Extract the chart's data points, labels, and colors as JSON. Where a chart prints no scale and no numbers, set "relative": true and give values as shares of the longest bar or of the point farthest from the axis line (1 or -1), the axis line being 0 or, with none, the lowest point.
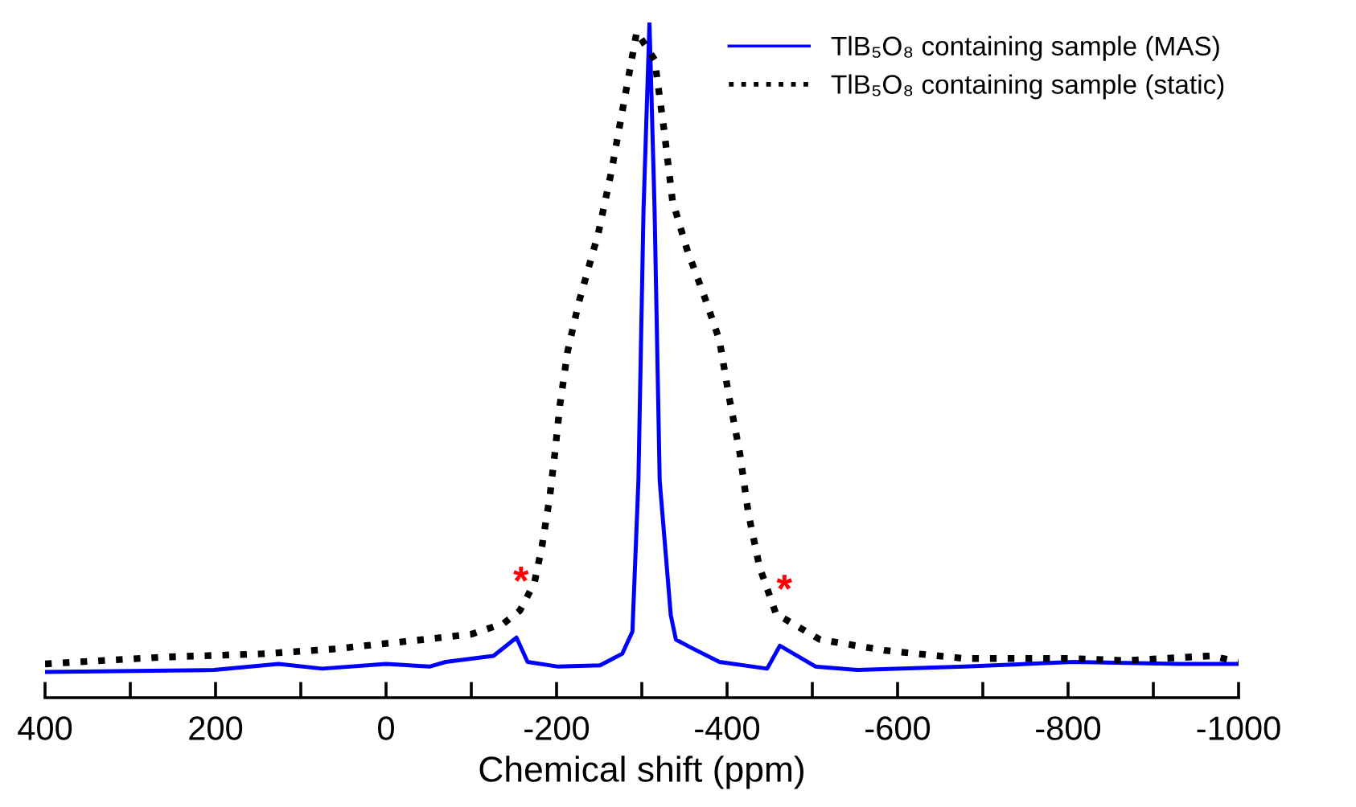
{
  "chart_data": {
    "type": "line",
    "relative": true,
    "xlabel": "Chemical shift (ppm)",
    "xlim": [
      400,
      -1000
    ],
    "xticks": [
      400,
      {
        "value": 300,
        "label": null
      },
      200,
      {
        "value": 100,
        "label": null
      },
      0,
      {
        "value": -100,
        "label": null
      },
      -200,
      {
        "value": -300,
        "label": null
      },
      -400,
      {
        "value": -500,
        "label": null
      },
      -600,
      {
        "value": -700,
        "label": null
      },
      -800,
      {
        "value": -900,
        "label": null
      },
      -1000
    ],
    "legend": "top right",
    "grid": false,
    "series": [
      {
        "name": "TlB₅O₈ containing sample (MAS)",
        "color": "#0000ff",
        "line_style": "solid",
        "x": [
          400,
          202,
          126,
          75,
          0,
          -51,
          -70,
          -126,
          -153,
          -166,
          -202,
          -251,
          -277,
          -289,
          -296,
          -302,
          -309,
          -315,
          -321,
          -334,
          -340,
          -358,
          -391,
          -447,
          -462,
          -504,
          -553,
          -679,
          -806,
          -930,
          -1000
        ],
        "values": [
          0.038,
          0.041,
          0.05,
          0.043,
          0.05,
          0.046,
          0.053,
          0.062,
          0.089,
          0.053,
          0.046,
          0.048,
          0.065,
          0.098,
          0.321,
          0.722,
          1.0,
          0.722,
          0.321,
          0.122,
          0.086,
          0.074,
          0.053,
          0.043,
          0.077,
          0.046,
          0.041,
          0.046,
          0.053,
          0.05,
          0.05
        ]
      },
      {
        "name": "TlB₅O₈ containing sample (static)",
        "color": "#000000",
        "line_style": "dotted",
        "x": [
          400,
          264,
          145,
          62,
          -43,
          -100,
          -138,
          -157,
          -174,
          -183,
          -192,
          -198,
          -204,
          -213,
          -226,
          -249,
          -264,
          -294,
          -315,
          -326,
          -336,
          -353,
          -374,
          -391,
          -402,
          -415,
          -425,
          -438,
          -458,
          -466,
          -509,
          -585,
          -679,
          -806,
          -868,
          -968,
          -1000
        ],
        "values": [
          0.05,
          0.06,
          0.065,
          0.072,
          0.086,
          0.094,
          0.11,
          0.129,
          0.17,
          0.225,
          0.297,
          0.362,
          0.434,
          0.513,
          0.585,
          0.688,
          0.777,
          0.986,
          0.945,
          0.842,
          0.736,
          0.664,
          0.592,
          0.53,
          0.448,
          0.362,
          0.273,
          0.194,
          0.122,
          0.118,
          0.086,
          0.07,
          0.058,
          0.058,
          0.055,
          0.062,
          0.053
        ]
      }
    ],
    "annotations": [
      {
        "text": "*",
        "x": -153,
        "y": 0.089
      },
      {
        "text": "*",
        "x": -462,
        "y": 0.077
      }
    ]
  }
}
